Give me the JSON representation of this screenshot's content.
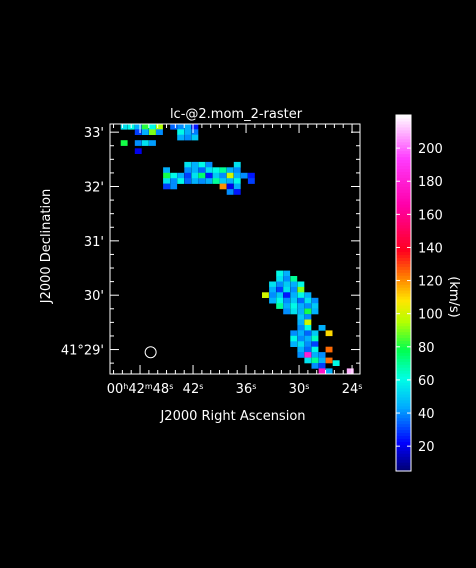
{
  "chart_data": {
    "type": "heatmap",
    "title": "lc-@2.mom_2-raster",
    "xlabel": "J2000 Right Ascension",
    "ylabel": "J2000 Declination",
    "x_ticks": [
      {
        "ra_sec": 48,
        "label": "00h42m48s"
      },
      {
        "ra_sec": 42,
        "label": "42s"
      },
      {
        "ra_sec": 36,
        "label": "36s"
      },
      {
        "ra_sec": 30,
        "label": "30s"
      },
      {
        "ra_sec": 24,
        "label": "24s"
      }
    ],
    "y_ticks": [
      {
        "dec_arcmin": 33,
        "label": "33'"
      },
      {
        "dec_arcmin": 32,
        "label": "32'"
      },
      {
        "dec_arcmin": 31,
        "label": "31'"
      },
      {
        "dec_arcmin": 30,
        "label": "30'"
      },
      {
        "dec_arcmin": 29,
        "label": "41°29'"
      }
    ],
    "xlim_ra_sec": [
      51.4,
      23.1
    ],
    "ylim_dec_arcmin": [
      28.55,
      33.15
    ],
    "beam": {
      "ra_sec": 46.8,
      "dec_arcmin": 28.95
    },
    "colorbar": {
      "label": "(km/s)",
      "range": [
        5,
        220
      ],
      "ticks": [
        20,
        40,
        60,
        80,
        100,
        120,
        140,
        160,
        180,
        200
      ],
      "tick_labels": [
        "20",
        "40",
        "60",
        "80",
        "100",
        "120",
        "140",
        "160",
        "180",
        "200"
      ]
    },
    "pixel_size": {
      "ra_sec": 0.78,
      "dec_arcmin": 0.105
    },
    "pixels": [
      [
        49.8,
        33.1,
        55
      ],
      [
        49.0,
        33.1,
        60
      ],
      [
        48.2,
        33.1,
        45
      ],
      [
        47.4,
        33.1,
        82
      ],
      [
        46.6,
        33.1,
        60
      ],
      [
        45.8,
        33.1,
        95
      ],
      [
        44.2,
        33.1,
        35
      ],
      [
        43.4,
        33.1,
        40
      ],
      [
        42.6,
        33.1,
        45
      ],
      [
        41.8,
        33.1,
        25
      ],
      [
        48.2,
        33.0,
        30
      ],
      [
        47.4,
        33.0,
        45
      ],
      [
        46.6,
        33.0,
        90
      ],
      [
        45.8,
        33.0,
        40
      ],
      [
        43.4,
        33.0,
        60
      ],
      [
        42.6,
        33.0,
        45
      ],
      [
        41.8,
        33.0,
        38
      ],
      [
        43.4,
        32.9,
        45
      ],
      [
        42.6,
        32.9,
        40
      ],
      [
        41.8,
        32.9,
        50
      ],
      [
        49.8,
        32.8,
        80
      ],
      [
        48.2,
        32.8,
        40
      ],
      [
        47.4,
        32.8,
        55
      ],
      [
        46.6,
        32.8,
        42
      ],
      [
        48.2,
        32.65,
        20
      ],
      [
        42.6,
        32.4,
        55
      ],
      [
        41.8,
        32.4,
        45
      ],
      [
        41.0,
        32.4,
        60
      ],
      [
        40.2,
        32.4,
        40
      ],
      [
        37.0,
        32.4,
        55
      ],
      [
        45.0,
        32.3,
        45
      ],
      [
        42.6,
        32.3,
        40
      ],
      [
        41.8,
        32.3,
        45
      ],
      [
        41.0,
        32.3,
        35
      ],
      [
        40.2,
        32.3,
        55
      ],
      [
        39.4,
        32.3,
        60
      ],
      [
        38.6,
        32.3,
        70
      ],
      [
        37.8,
        32.3,
        45
      ],
      [
        37.0,
        32.3,
        40
      ],
      [
        45.0,
        32.2,
        80
      ],
      [
        44.2,
        32.2,
        60
      ],
      [
        43.4,
        32.2,
        45
      ],
      [
        42.6,
        32.2,
        30
      ],
      [
        41.8,
        32.2,
        55
      ],
      [
        41.0,
        32.2,
        75
      ],
      [
        40.2,
        32.2,
        25
      ],
      [
        39.4,
        32.2,
        50
      ],
      [
        38.6,
        32.2,
        40
      ],
      [
        37.8,
        32.2,
        100
      ],
      [
        37.0,
        32.2,
        45
      ],
      [
        36.2,
        32.2,
        40
      ],
      [
        35.4,
        32.2,
        25
      ],
      [
        45.0,
        32.1,
        55
      ],
      [
        44.2,
        32.1,
        40
      ],
      [
        43.4,
        32.1,
        60
      ],
      [
        42.6,
        32.1,
        35
      ],
      [
        41.8,
        32.1,
        45
      ],
      [
        41.0,
        32.1,
        40
      ],
      [
        40.2,
        32.1,
        45
      ],
      [
        39.4,
        32.1,
        70
      ],
      [
        38.6,
        32.1,
        50
      ],
      [
        37.8,
        32.1,
        45
      ],
      [
        37.0,
        32.1,
        60
      ],
      [
        35.4,
        32.1,
        30
      ],
      [
        45.0,
        32.0,
        30
      ],
      [
        44.2,
        32.0,
        40
      ],
      [
        38.6,
        32.0,
        120
      ],
      [
        37.8,
        32.0,
        20
      ],
      [
        37.0,
        32.0,
        45
      ],
      [
        37.8,
        31.9,
        40
      ],
      [
        37.0,
        31.9,
        25
      ],
      [
        32.2,
        30.4,
        60
      ],
      [
        31.4,
        30.4,
        45
      ],
      [
        32.2,
        30.3,
        55
      ],
      [
        31.4,
        30.3,
        40
      ],
      [
        30.6,
        30.3,
        70
      ],
      [
        33.0,
        30.2,
        55
      ],
      [
        32.2,
        30.2,
        40
      ],
      [
        31.4,
        30.2,
        50
      ],
      [
        30.6,
        30.2,
        45
      ],
      [
        29.8,
        30.2,
        60
      ],
      [
        33.0,
        30.1,
        45
      ],
      [
        32.2,
        30.1,
        30
      ],
      [
        31.4,
        30.1,
        55
      ],
      [
        30.6,
        30.1,
        40
      ],
      [
        29.8,
        30.1,
        90
      ],
      [
        33.8,
        30.0,
        100
      ],
      [
        33.0,
        30.0,
        40
      ],
      [
        32.2,
        30.0,
        50
      ],
      [
        31.4,
        30.0,
        25
      ],
      [
        30.6,
        30.0,
        45
      ],
      [
        29.8,
        30.0,
        60
      ],
      [
        29.0,
        30.0,
        45
      ],
      [
        33.0,
        29.9,
        45
      ],
      [
        32.2,
        29.9,
        60
      ],
      [
        31.4,
        29.9,
        40
      ],
      [
        30.6,
        29.9,
        50
      ],
      [
        29.8,
        29.9,
        35
      ],
      [
        29.0,
        29.9,
        55
      ],
      [
        28.2,
        29.9,
        40
      ],
      [
        32.2,
        29.8,
        70
      ],
      [
        31.4,
        29.8,
        45
      ],
      [
        30.6,
        29.8,
        60
      ],
      [
        29.8,
        29.8,
        45
      ],
      [
        29.0,
        29.8,
        40
      ],
      [
        28.2,
        29.8,
        50
      ],
      [
        31.4,
        29.7,
        40
      ],
      [
        30.6,
        29.7,
        55
      ],
      [
        29.8,
        29.7,
        45
      ],
      [
        29.0,
        29.7,
        80
      ],
      [
        28.2,
        29.7,
        45
      ],
      [
        29.8,
        29.6,
        50
      ],
      [
        29.0,
        29.6,
        40
      ],
      [
        29.8,
        29.5,
        45
      ],
      [
        29.0,
        29.5,
        100
      ],
      [
        27.4,
        29.4,
        45
      ],
      [
        26.6,
        29.3,
        110
      ],
      [
        29.8,
        29.4,
        40
      ],
      [
        29.0,
        29.4,
        60
      ],
      [
        30.6,
        29.3,
        40
      ],
      [
        29.8,
        29.3,
        45
      ],
      [
        29.0,
        29.3,
        35
      ],
      [
        28.2,
        29.3,
        50
      ],
      [
        30.6,
        29.2,
        60
      ],
      [
        29.8,
        29.2,
        40
      ],
      [
        29.0,
        29.2,
        45
      ],
      [
        28.2,
        29.2,
        65
      ],
      [
        30.6,
        29.1,
        45
      ],
      [
        29.8,
        29.1,
        55
      ],
      [
        29.0,
        29.1,
        40
      ],
      [
        28.2,
        29.1,
        30
      ],
      [
        26.6,
        29.0,
        125
      ],
      [
        29.8,
        29.0,
        45
      ],
      [
        29.0,
        29.0,
        35
      ],
      [
        28.2,
        29.0,
        60
      ],
      [
        29.8,
        28.9,
        40
      ],
      [
        29.0,
        28.9,
        180
      ],
      [
        28.2,
        28.9,
        45
      ],
      [
        27.4,
        28.9,
        40
      ],
      [
        29.0,
        28.8,
        55
      ],
      [
        28.2,
        28.8,
        70
      ],
      [
        27.4,
        28.8,
        45
      ],
      [
        26.6,
        28.8,
        125
      ],
      [
        28.2,
        28.7,
        40
      ],
      [
        27.4,
        28.7,
        30
      ],
      [
        25.8,
        28.75,
        60
      ],
      [
        27.4,
        28.6,
        175
      ],
      [
        26.6,
        28.6,
        45
      ],
      [
        24.2,
        28.6,
        210
      ]
    ]
  }
}
